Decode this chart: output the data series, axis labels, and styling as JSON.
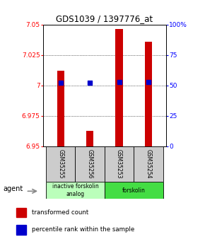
{
  "title": "GDS1039 / 1397776_at",
  "samples": [
    "GSM35255",
    "GSM35256",
    "GSM35253",
    "GSM35254"
  ],
  "red_values": [
    7.012,
    6.963,
    7.046,
    7.036
  ],
  "blue_values": [
    52,
    52,
    53,
    53
  ],
  "ylim_left": [
    6.95,
    7.05
  ],
  "ylim_right": [
    0,
    100
  ],
  "yticks_left": [
    6.95,
    6.975,
    7.0,
    7.025,
    7.05
  ],
  "ytick_labels_left": [
    "6.95",
    "6.975",
    "7",
    "7.025",
    "7.05"
  ],
  "yticks_right": [
    0,
    25,
    50,
    75,
    100
  ],
  "ytick_labels_right": [
    "0",
    "25",
    "50",
    "75",
    "100%"
  ],
  "groups": [
    {
      "label": "inactive forskolin\nanalog",
      "samples": [
        0,
        1
      ],
      "color": "#bbffbb"
    },
    {
      "label": "forskolin",
      "samples": [
        2,
        3
      ],
      "color": "#44dd44"
    }
  ],
  "bar_width": 0.25,
  "red_color": "#cc0000",
  "blue_color": "#0000cc",
  "agent_label": "agent",
  "legend_red": "transformed count",
  "legend_blue": "percentile rank within the sample",
  "base_red": 6.95,
  "sample_gray": "#cccccc"
}
